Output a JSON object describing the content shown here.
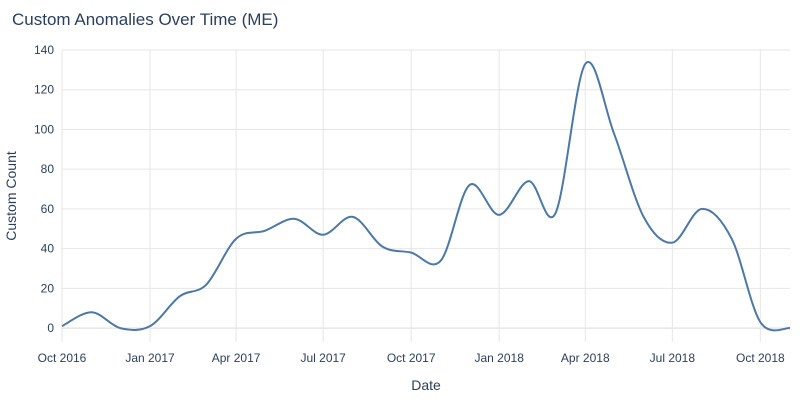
{
  "chart_data": {
    "type": "line",
    "title": "Custom Anomalies Over Time (ME)",
    "xlabel": "Date",
    "ylabel": "Custom Count",
    "ylim": [
      -7,
      140
    ],
    "xlim": [
      "2016-10-01",
      "2018-11-01"
    ],
    "grid": true,
    "y_ticks": [
      0,
      20,
      40,
      60,
      80,
      100,
      120,
      140
    ],
    "x_ticks": [
      {
        "date": "2016-10-01",
        "label": "Oct 2016"
      },
      {
        "date": "2017-01-01",
        "label": "Jan 2017"
      },
      {
        "date": "2017-04-01",
        "label": "Apr 2017"
      },
      {
        "date": "2017-07-01",
        "label": "Jul 2017"
      },
      {
        "date": "2017-10-01",
        "label": "Oct 2017"
      },
      {
        "date": "2018-01-01",
        "label": "Jan 2018"
      },
      {
        "date": "2018-04-01",
        "label": "Apr 2018"
      },
      {
        "date": "2018-07-01",
        "label": "Jul 2018"
      },
      {
        "date": "2018-10-01",
        "label": "Oct 2018"
      }
    ],
    "series": [
      {
        "color": "#4c78a8",
        "x": [
          "2016-10-01",
          "2016-11-01",
          "2016-12-01",
          "2017-01-01",
          "2017-02-01",
          "2017-03-01",
          "2017-04-01",
          "2017-05-01",
          "2017-06-01",
          "2017-07-01",
          "2017-08-01",
          "2017-09-01",
          "2017-10-01",
          "2017-11-01",
          "2017-12-01",
          "2018-01-01",
          "2018-02-01",
          "2018-03-01",
          "2018-04-01",
          "2018-05-01",
          "2018-06-01",
          "2018-07-01",
          "2018-08-01",
          "2018-09-01",
          "2018-10-01",
          "2018-11-01"
        ],
        "values": [
          1,
          8,
          0,
          1,
          16,
          22,
          45,
          49,
          55,
          47,
          56,
          41,
          38,
          34,
          72,
          57,
          74,
          58,
          133,
          98,
          56,
          43,
          60,
          45,
          3,
          0
        ]
      }
    ]
  }
}
